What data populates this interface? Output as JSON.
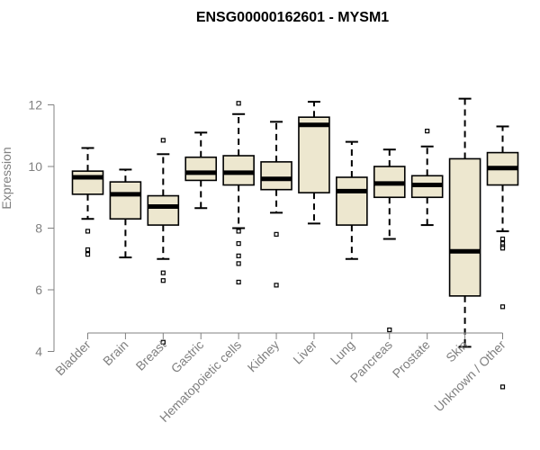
{
  "chart_data": {
    "type": "box",
    "title": "ENSG00000162601 - MYSM1",
    "xlabel": "",
    "ylabel": "Expression",
    "ylim": [
      3,
      12.3
    ],
    "yticks": [
      4,
      6,
      8,
      10,
      12
    ],
    "grid": false,
    "legend": "none",
    "colors": {
      "box_fill": "#EDE7CF",
      "box_stroke": "#000000",
      "median": "#000000",
      "axis": "#808080"
    },
    "categories": [
      "Bladder",
      "Brain",
      "Breast",
      "Gastric",
      "Hematopoietic cells",
      "Kidney",
      "Liver",
      "Lung",
      "Pancreas",
      "Prostate",
      "Skin",
      "Unknown / Other"
    ],
    "boxes": [
      {
        "category": "Bladder",
        "whisker_low": 8.3,
        "q1": 9.1,
        "median": 9.65,
        "q3": 9.85,
        "whisker_high": 10.6,
        "outliers": [
          7.9,
          7.3,
          7.15
        ]
      },
      {
        "category": "Brain",
        "whisker_low": 7.05,
        "q1": 8.3,
        "median": 9.1,
        "q3": 9.5,
        "whisker_high": 9.9,
        "outliers": []
      },
      {
        "category": "Breast",
        "whisker_low": 7.0,
        "q1": 8.1,
        "median": 8.7,
        "q3": 9.05,
        "whisker_high": 10.4,
        "outliers": [
          10.85,
          6.55,
          6.3,
          4.3
        ]
      },
      {
        "category": "Gastric",
        "whisker_low": 8.65,
        "q1": 9.55,
        "median": 9.8,
        "q3": 10.3,
        "whisker_high": 11.1,
        "outliers": []
      },
      {
        "category": "Hematopoietic cells",
        "whisker_low": 8.0,
        "q1": 9.4,
        "median": 9.8,
        "q3": 10.35,
        "whisker_high": 11.7,
        "outliers": [
          12.05,
          7.9,
          7.5,
          7.1,
          6.85,
          6.25
        ]
      },
      {
        "category": "Kidney",
        "whisker_low": 8.5,
        "q1": 9.25,
        "median": 9.6,
        "q3": 10.15,
        "whisker_high": 11.45,
        "outliers": [
          7.8,
          6.15
        ]
      },
      {
        "category": "Liver",
        "whisker_low": 8.15,
        "q1": 9.15,
        "median": 11.35,
        "q3": 11.6,
        "whisker_high": 12.1,
        "outliers": []
      },
      {
        "category": "Lung",
        "whisker_low": 7.0,
        "q1": 8.1,
        "median": 9.2,
        "q3": 9.65,
        "whisker_high": 10.8,
        "outliers": []
      },
      {
        "category": "Pancreas",
        "whisker_low": 7.65,
        "q1": 9.0,
        "median": 9.45,
        "q3": 10.0,
        "whisker_high": 10.55,
        "outliers": [
          4.7
        ]
      },
      {
        "category": "Prostate",
        "whisker_low": 8.1,
        "q1": 9.0,
        "median": 9.4,
        "q3": 9.7,
        "whisker_high": 10.65,
        "outliers": [
          11.15
        ]
      },
      {
        "category": "Skin",
        "whisker_low": 4.15,
        "q1": 5.8,
        "median": 7.25,
        "q3": 10.25,
        "whisker_high": 12.2,
        "outliers": []
      },
      {
        "category": "Unknown / Other",
        "whisker_low": 7.9,
        "q1": 9.4,
        "median": 9.95,
        "q3": 10.45,
        "whisker_high": 11.3,
        "outliers": [
          7.65,
          7.5,
          7.4,
          7.35,
          5.45,
          2.85
        ]
      }
    ]
  }
}
